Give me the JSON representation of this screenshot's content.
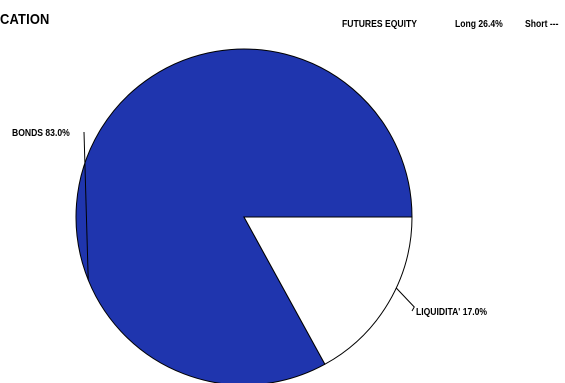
{
  "header": {
    "title": "CATION",
    "futures_label": "FUTURES EQUITY",
    "long_label": "Long 26.4%",
    "short_label": "Short ---"
  },
  "chart_data": {
    "type": "pie",
    "slices": [
      {
        "label": "BONDS 83.0%",
        "name": "BONDS",
        "value": 83.0,
        "color": "#1f35ae"
      },
      {
        "label": "LIQUIDITA' 17.0%",
        "name": "LIQUIDITA'",
        "value": 17.0,
        "color": "#ffffff"
      }
    ]
  }
}
